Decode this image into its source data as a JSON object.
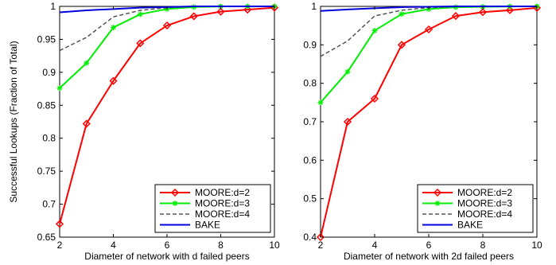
{
  "chart_data": [
    {
      "type": "line",
      "xlabel": "Diameter of network with d failed peers",
      "ylabel": "Successful Lookups (Fraction of Total)",
      "xlim": [
        2,
        10
      ],
      "ylim": [
        0.65,
        1.0
      ],
      "xticks": [
        2,
        4,
        6,
        8,
        10
      ],
      "yticks": [
        0.65,
        0.7,
        0.75,
        0.8,
        0.85,
        0.9,
        0.95,
        1
      ],
      "ytick_labels": [
        "0.65",
        "0.7",
        "0.75",
        "0.8",
        "0.85",
        "0.9",
        "0.95",
        "1"
      ],
      "grid": false,
      "legend_position": "bottom-right",
      "series": [
        {
          "name": "MOORE:d=2",
          "color": "#ff0000",
          "marker": "diamond",
          "dash": "solid",
          "x": [
            2,
            3,
            4,
            5,
            6,
            7,
            8,
            9,
            10
          ],
          "y": [
            0.67,
            0.822,
            0.887,
            0.944,
            0.971,
            0.985,
            0.992,
            0.995,
            0.998
          ]
        },
        {
          "name": "MOORE:d=3",
          "color": "#00ee00",
          "marker": "star",
          "dash": "solid",
          "x": [
            2,
            3,
            4,
            5,
            6,
            7,
            8,
            9,
            10
          ],
          "y": [
            0.876,
            0.914,
            0.968,
            0.988,
            0.996,
            0.999,
            1.0,
            1.0,
            1.0
          ]
        },
        {
          "name": "MOORE:d=4",
          "color": "#555555",
          "marker": "none",
          "dash": "dashed",
          "x": [
            2,
            3,
            4,
            5,
            6,
            7,
            8,
            9,
            10
          ],
          "y": [
            0.933,
            0.953,
            0.984,
            0.994,
            0.998,
            1.0,
            1.0,
            1.0,
            1.0
          ]
        },
        {
          "name": "BAKE",
          "color": "#0000dd",
          "marker": "none",
          "dash": "solid",
          "x": [
            2,
            3,
            4,
            5,
            6,
            7,
            8,
            9,
            10
          ],
          "y": [
            0.991,
            0.994,
            0.996,
            0.998,
            0.999,
            1.0,
            1.0,
            1.0,
            1.0
          ]
        }
      ]
    },
    {
      "type": "line",
      "xlabel": "Diameter of network with 2d failed peers",
      "ylabel": "",
      "xlim": [
        2,
        10
      ],
      "ylim": [
        0.4,
        1.0
      ],
      "xticks": [
        2,
        4,
        6,
        8,
        10
      ],
      "yticks": [
        0.4,
        0.5,
        0.6,
        0.7,
        0.8,
        0.9,
        1
      ],
      "ytick_labels": [
        "0.4",
        "0.5",
        "0.6",
        "0.7",
        "0.8",
        "0.9",
        "1"
      ],
      "grid": false,
      "legend_position": "bottom-right",
      "series": [
        {
          "name": "MOORE:d=2",
          "color": "#ff0000",
          "marker": "diamond",
          "dash": "solid",
          "x": [
            2,
            3,
            4,
            5,
            6,
            7,
            8,
            9,
            10
          ],
          "y": [
            0.4,
            0.7,
            0.76,
            0.9,
            0.94,
            0.975,
            0.985,
            0.99,
            0.996
          ]
        },
        {
          "name": "MOORE:d=3",
          "color": "#00ee00",
          "marker": "star",
          "dash": "solid",
          "x": [
            2,
            3,
            4,
            5,
            6,
            7,
            8,
            9,
            10
          ],
          "y": [
            0.75,
            0.83,
            0.937,
            0.98,
            0.993,
            0.998,
            0.999,
            1.0,
            1.0
          ]
        },
        {
          "name": "MOORE:d=4",
          "color": "#555555",
          "marker": "none",
          "dash": "dashed",
          "x": [
            2,
            3,
            4,
            5,
            6,
            7,
            8,
            9,
            10
          ],
          "y": [
            0.87,
            0.91,
            0.975,
            0.99,
            0.997,
            0.999,
            1.0,
            1.0,
            1.0
          ]
        },
        {
          "name": "BAKE",
          "color": "#0000dd",
          "marker": "none",
          "dash": "solid",
          "x": [
            2,
            3,
            4,
            5,
            6,
            7,
            8,
            9,
            10
          ],
          "y": [
            0.988,
            0.992,
            0.995,
            0.998,
            0.999,
            1.0,
            1.0,
            1.0,
            1.0
          ]
        }
      ]
    }
  ]
}
